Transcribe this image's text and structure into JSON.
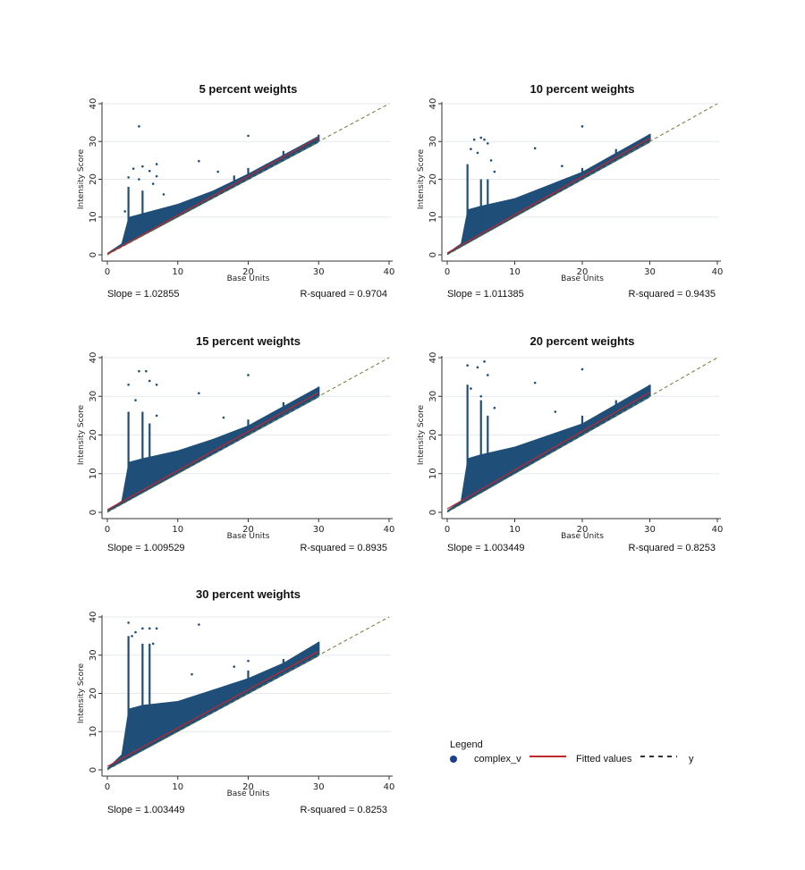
{
  "chart_data": [
    {
      "type": "scatter",
      "title": "5 percent weights",
      "xlabel": "Base Units",
      "ylabel": "Intensity Score",
      "xlim": [
        0,
        40
      ],
      "ylim": [
        0,
        40
      ],
      "xticks": [
        0,
        10,
        20,
        30,
        40
      ],
      "yticks": [
        0,
        10,
        20,
        30,
        40
      ],
      "grid": true,
      "slope_label": "Slope = 1.02855",
      "r2_label": "R-squared = 0.9704",
      "fit": {
        "slope": 1.02855,
        "intercept": 0.2
      },
      "cloud_upper": [
        [
          0,
          0.5
        ],
        [
          2,
          3
        ],
        [
          3,
          10
        ],
        [
          5,
          11
        ],
        [
          10,
          13.5
        ],
        [
          15,
          17
        ],
        [
          20,
          21.5
        ],
        [
          25,
          26.5
        ],
        [
          30,
          31.5
        ]
      ],
      "spikes": [
        [
          3,
          18
        ],
        [
          5,
          17
        ],
        [
          18,
          21
        ],
        [
          20,
          23
        ],
        [
          22.5,
          24
        ],
        [
          25,
          27.5
        ],
        [
          30,
          31.8
        ]
      ],
      "outliers": [
        [
          4.5,
          34
        ],
        [
          20,
          31.5
        ],
        [
          13,
          24.8
        ],
        [
          7,
          24
        ],
        [
          3.7,
          22.8
        ],
        [
          5,
          23.4
        ],
        [
          6,
          22.2
        ],
        [
          3,
          20.5
        ],
        [
          7,
          20.8
        ],
        [
          4.5,
          20
        ],
        [
          6.5,
          18.8
        ],
        [
          8,
          16
        ],
        [
          15.7,
          22
        ],
        [
          2.5,
          11.5
        ]
      ]
    },
    {
      "type": "scatter",
      "title": "10 percent weights",
      "xlabel": "Base Units",
      "ylabel": "Intensity Score",
      "xlim": [
        0,
        40
      ],
      "ylim": [
        0,
        40
      ],
      "xticks": [
        0,
        10,
        20,
        30,
        40
      ],
      "yticks": [
        0,
        10,
        20,
        30,
        40
      ],
      "grid": true,
      "slope_label": "Slope = 1.011385",
      "r2_label": "R-squared = 0.9435",
      "fit": {
        "slope": 1.011385,
        "intercept": 0.5
      },
      "cloud_upper": [
        [
          0,
          0.5
        ],
        [
          2,
          3
        ],
        [
          3,
          12
        ],
        [
          5,
          13
        ],
        [
          10,
          15
        ],
        [
          15,
          18.5
        ],
        [
          20,
          22
        ],
        [
          25,
          27
        ],
        [
          30,
          32
        ]
      ],
      "spikes": [
        [
          3,
          24
        ],
        [
          5,
          20
        ],
        [
          6,
          20
        ],
        [
          20,
          23
        ],
        [
          25,
          28
        ],
        [
          30,
          32
        ]
      ],
      "outliers": [
        [
          4,
          30.5
        ],
        [
          5,
          31
        ],
        [
          5.5,
          30.5
        ],
        [
          20,
          34
        ],
        [
          13,
          28.2
        ],
        [
          3.5,
          28
        ],
        [
          6,
          29.5
        ],
        [
          4.5,
          27
        ],
        [
          6.5,
          25
        ],
        [
          17,
          23.5
        ],
        [
          7,
          22
        ]
      ]
    },
    {
      "type": "scatter",
      "title": "15 percent weights",
      "xlabel": "Base Units",
      "ylabel": "Intensity Score",
      "xlim": [
        0,
        40
      ],
      "ylim": [
        0,
        40
      ],
      "xticks": [
        0,
        10,
        20,
        30,
        40
      ],
      "yticks": [
        0,
        10,
        20,
        30,
        40
      ],
      "grid": true,
      "slope_label": "Slope = 1.009529",
      "r2_label": "R-squared = 0.8935",
      "fit": {
        "slope": 1.009529,
        "intercept": 0.7
      },
      "cloud_upper": [
        [
          0,
          0.5
        ],
        [
          2,
          3
        ],
        [
          3,
          13
        ],
        [
          5,
          14
        ],
        [
          10,
          16
        ],
        [
          15,
          19
        ],
        [
          20,
          22.5
        ],
        [
          25,
          27.5
        ],
        [
          30,
          32.5
        ]
      ],
      "spikes": [
        [
          3,
          26
        ],
        [
          5,
          26
        ],
        [
          6,
          23
        ],
        [
          20,
          24
        ],
        [
          25,
          28.5
        ],
        [
          30,
          32.5
        ]
      ],
      "outliers": [
        [
          4.5,
          36.5
        ],
        [
          5.5,
          36.5
        ],
        [
          6,
          34
        ],
        [
          20,
          35.5
        ],
        [
          13,
          30.8
        ],
        [
          3,
          33
        ],
        [
          7,
          33
        ],
        [
          4,
          29
        ],
        [
          16.5,
          24.5
        ],
        [
          7,
          25
        ]
      ]
    },
    {
      "type": "scatter",
      "title": "20 percent weights",
      "xlabel": "Base Units",
      "ylabel": "Intensity Score",
      "xlim": [
        0,
        40
      ],
      "ylim": [
        0,
        40
      ],
      "xticks": [
        0,
        10,
        20,
        30,
        40
      ],
      "yticks": [
        0,
        10,
        20,
        30,
        40
      ],
      "grid": true,
      "slope_label": "Slope = 1.003449",
      "r2_label": "R-squared = 0.8253",
      "fit": {
        "slope": 1.003449,
        "intercept": 0.9
      },
      "cloud_upper": [
        [
          0,
          0.5
        ],
        [
          2,
          3
        ],
        [
          3,
          14
        ],
        [
          5,
          15
        ],
        [
          10,
          17
        ],
        [
          15,
          20
        ],
        [
          20,
          23
        ],
        [
          25,
          28
        ],
        [
          30,
          33
        ]
      ],
      "spikes": [
        [
          3,
          33
        ],
        [
          5,
          29
        ],
        [
          6,
          25
        ],
        [
          20,
          25
        ],
        [
          25,
          29
        ],
        [
          30,
          33
        ]
      ],
      "outliers": [
        [
          3,
          38
        ],
        [
          5.5,
          39
        ],
        [
          4.5,
          37.5
        ],
        [
          20,
          37
        ],
        [
          13,
          33.5
        ],
        [
          6,
          35.5
        ],
        [
          3.5,
          32
        ],
        [
          5,
          30
        ],
        [
          16,
          26
        ],
        [
          7,
          27
        ]
      ]
    },
    {
      "type": "scatter",
      "title": "30 percent weights",
      "xlabel": "Base Units",
      "ylabel": "Intensity Score",
      "xlim": [
        0,
        40
      ],
      "ylim": [
        0,
        40
      ],
      "xticks": [
        0,
        10,
        20,
        30,
        40
      ],
      "yticks": [
        0,
        10,
        20,
        30,
        40
      ],
      "grid": true,
      "slope_label": "Slope = 1.003449",
      "r2_label": "R-squared = 0.8253",
      "fit": {
        "slope": 1.003449,
        "intercept": 0.9
      },
      "cloud_upper": [
        [
          0,
          0.5
        ],
        [
          2,
          4
        ],
        [
          3,
          16
        ],
        [
          5,
          17
        ],
        [
          10,
          18
        ],
        [
          15,
          21
        ],
        [
          20,
          24
        ],
        [
          25,
          28
        ],
        [
          30,
          33.5
        ]
      ],
      "spikes": [
        [
          3,
          35
        ],
        [
          5,
          33
        ],
        [
          6,
          33
        ],
        [
          20,
          26
        ],
        [
          25,
          29
        ],
        [
          30,
          33.5
        ]
      ],
      "outliers": [
        [
          3,
          38.5
        ],
        [
          5,
          37
        ],
        [
          6,
          37
        ],
        [
          7,
          37
        ],
        [
          13,
          38
        ],
        [
          4,
          36
        ],
        [
          3.5,
          35
        ],
        [
          6.5,
          33
        ],
        [
          20,
          28.5
        ],
        [
          18,
          27
        ],
        [
          12,
          25
        ]
      ]
    }
  ],
  "legend": {
    "title": "Legend",
    "items": [
      {
        "label": "complex_v",
        "color": "#1a3f8f"
      },
      {
        "label": "Fitted values",
        "color": "#c0282d"
      },
      {
        "label": "y",
        "color": "#333333"
      }
    ]
  },
  "colors": {
    "points": "#1f4e79",
    "fit": "#c0282d",
    "identity": "#6b7a3a"
  }
}
